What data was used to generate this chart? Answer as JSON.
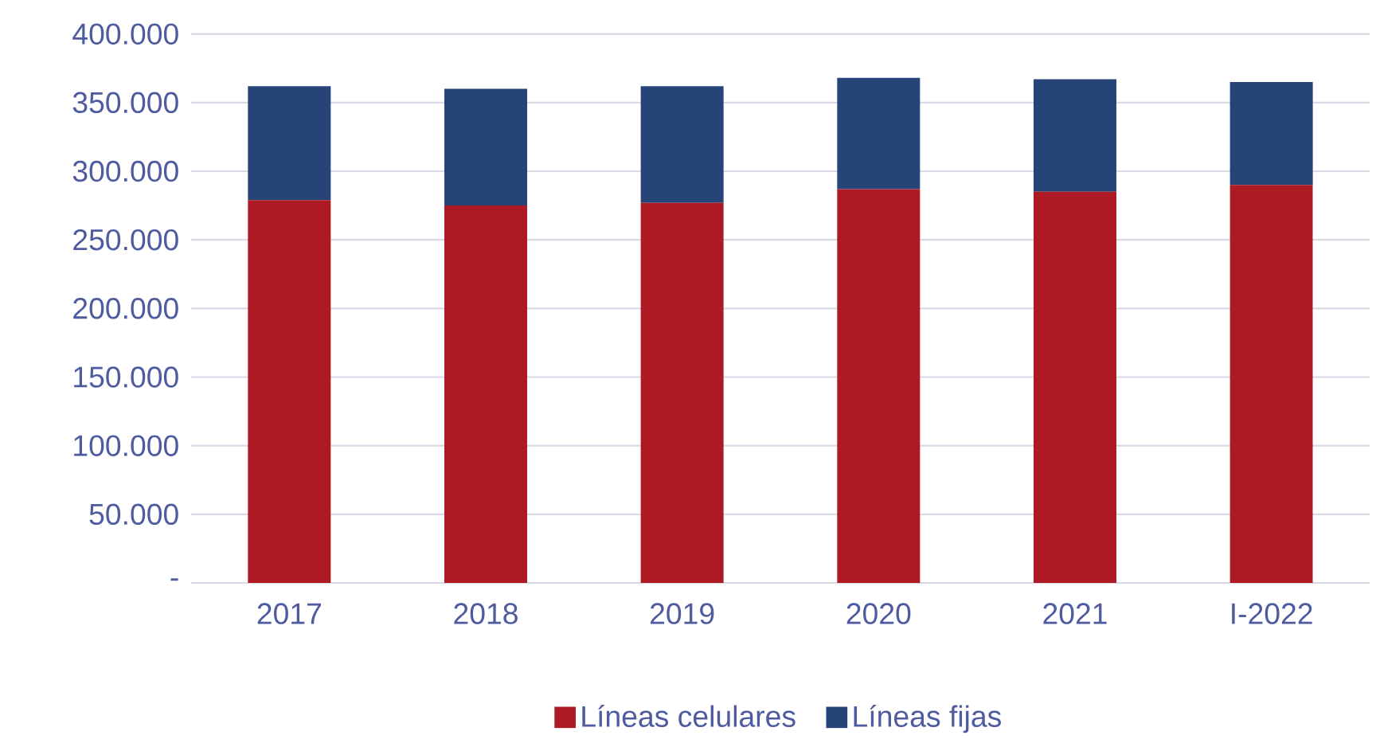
{
  "chart_data": {
    "type": "bar",
    "stacked": true,
    "categories": [
      "2017",
      "2018",
      "2019",
      "2020",
      "2021",
      "I-2022"
    ],
    "series": [
      {
        "name": "Líneas celulares",
        "color": "#ae1a24",
        "values": [
          279000,
          275000,
          277000,
          287000,
          285000,
          290000
        ]
      },
      {
        "name": "Líneas fijas",
        "color": "#264478",
        "values": [
          83000,
          85000,
          85000,
          81000,
          82000,
          75000
        ]
      }
    ],
    "ylim": [
      0,
      400000
    ],
    "yticks": [
      {
        "value": 0,
        "label": "-"
      },
      {
        "value": 50000,
        "label": "50.000"
      },
      {
        "value": 100000,
        "label": "100.000"
      },
      {
        "value": 150000,
        "label": "150.000"
      },
      {
        "value": 200000,
        "label": "200.000"
      },
      {
        "value": 250000,
        "label": "250.000"
      },
      {
        "value": 300000,
        "label": "300.000"
      },
      {
        "value": 350000,
        "label": "350.000"
      },
      {
        "value": 400000,
        "label": "400.000"
      }
    ],
    "grid": "y",
    "legend": "bottom"
  }
}
